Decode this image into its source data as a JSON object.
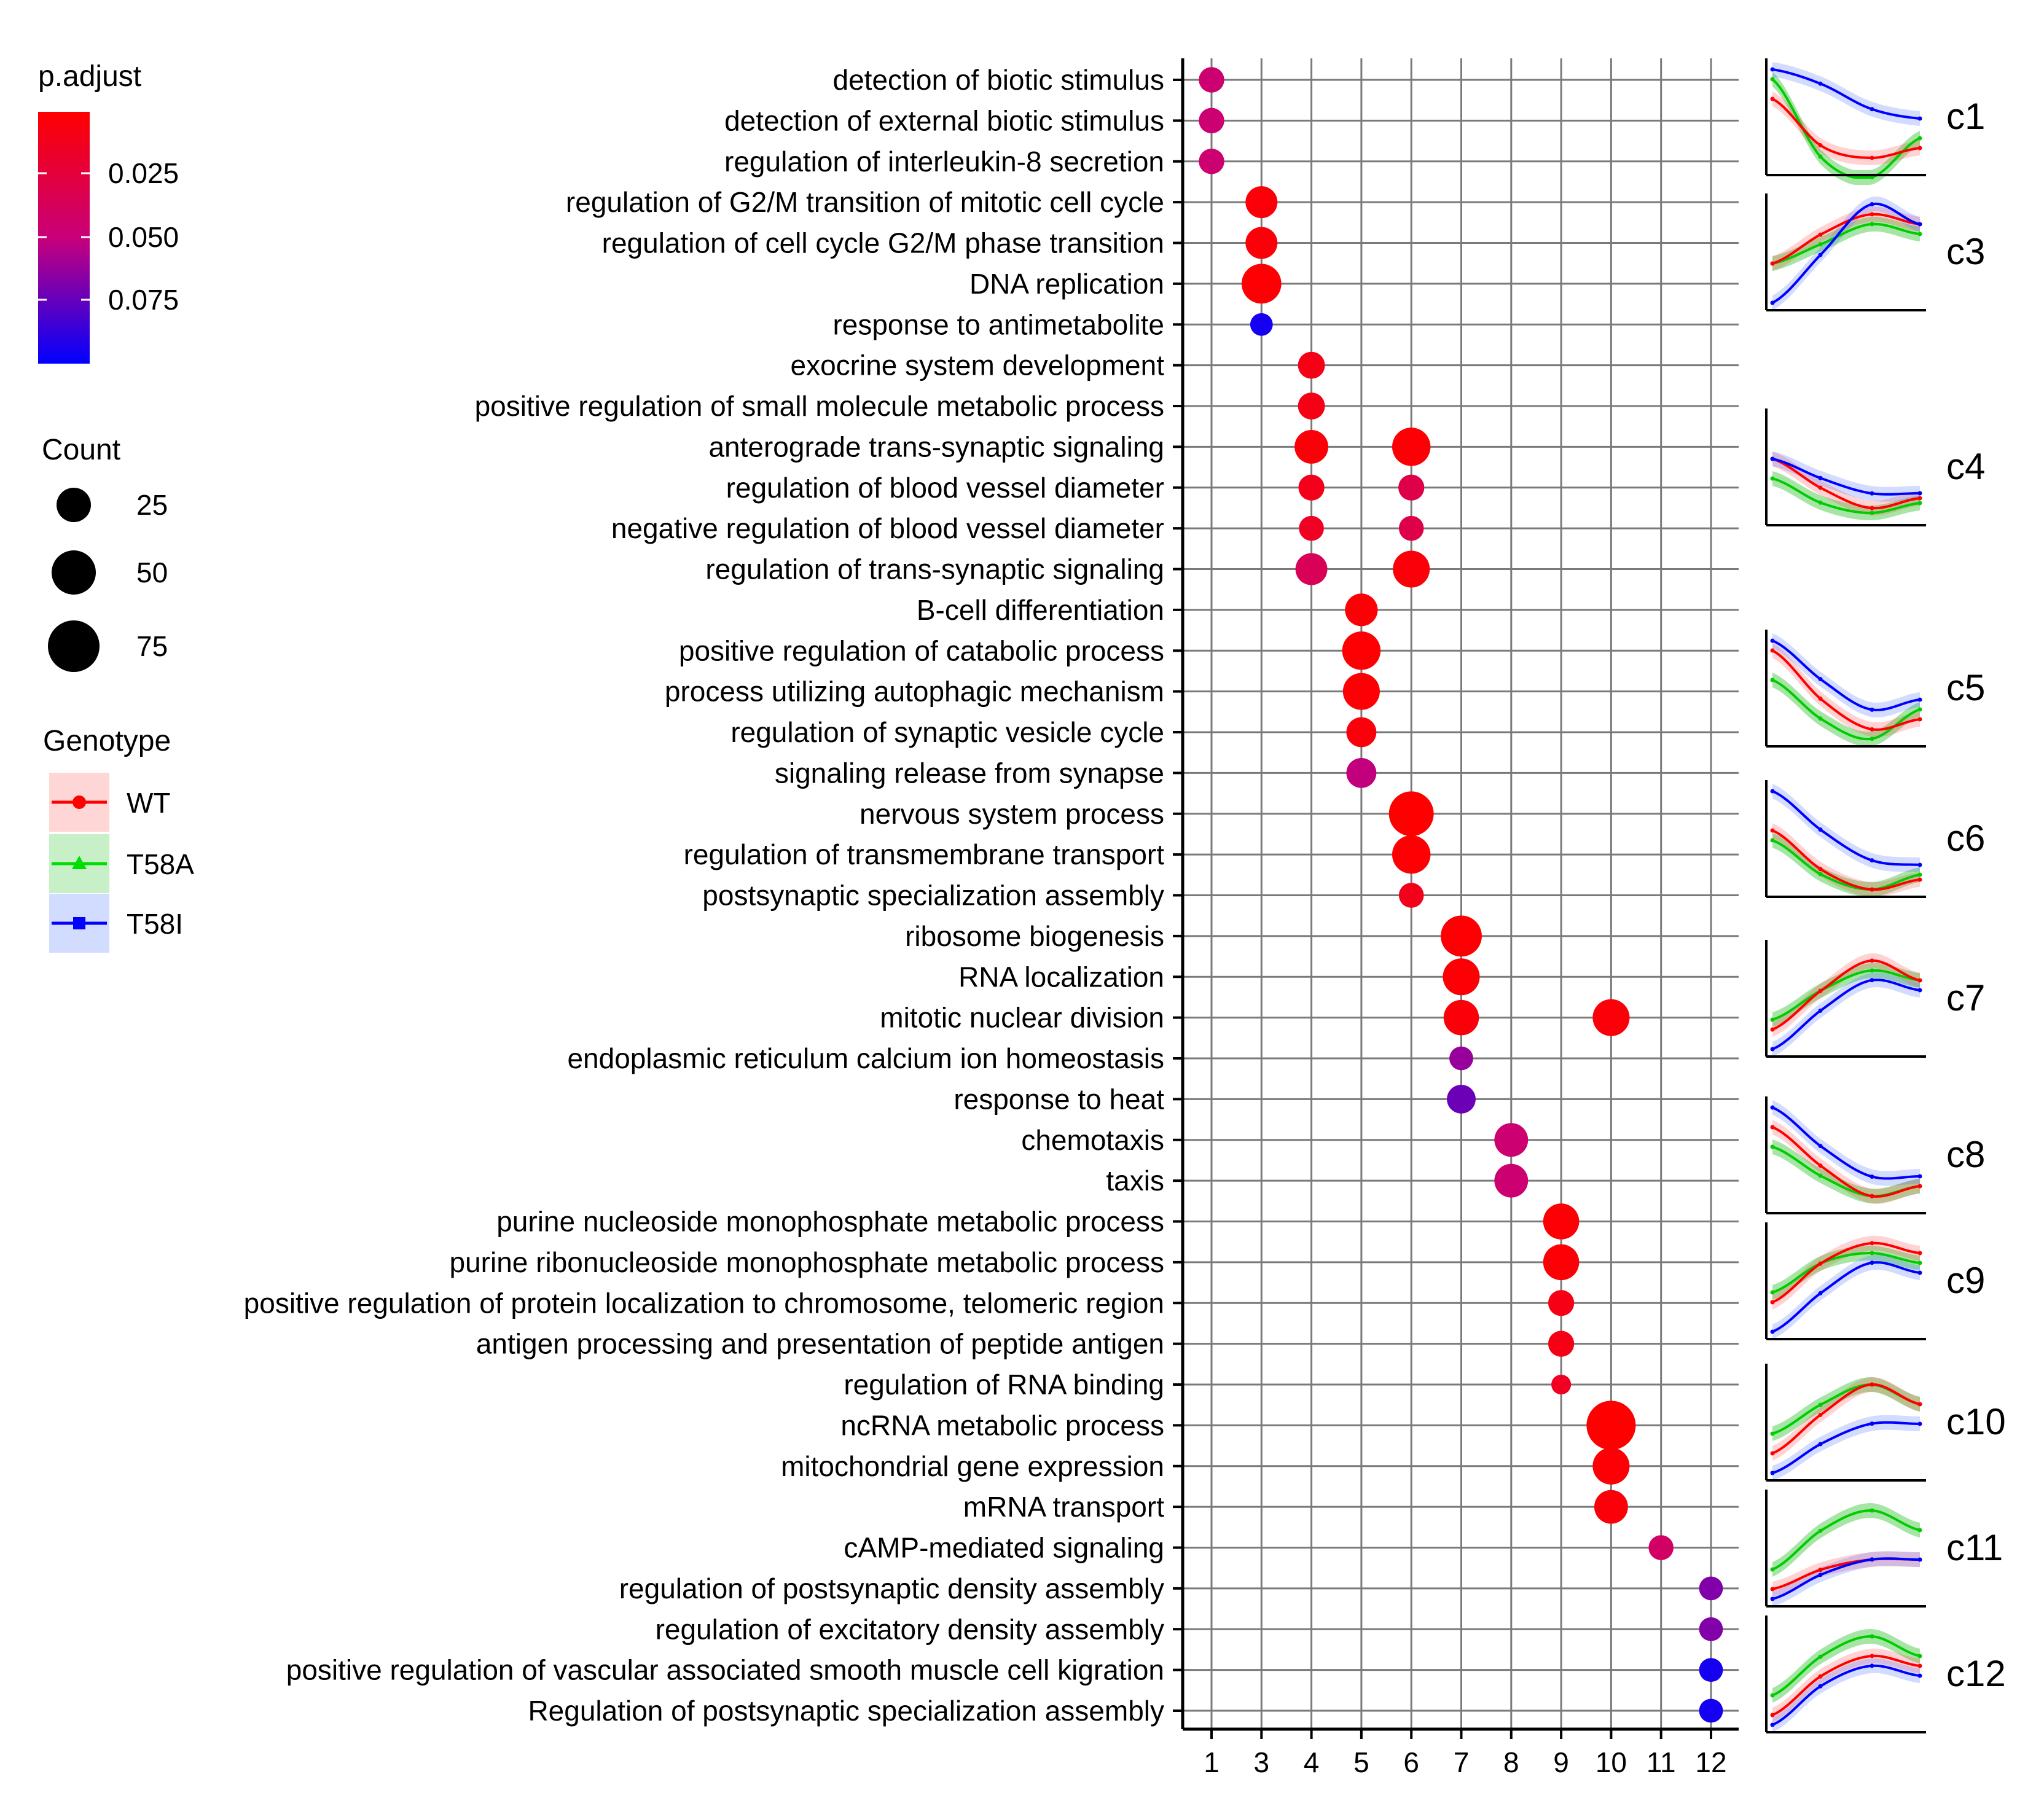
{
  "chart_data": {
    "type": "scatter",
    "title": "",
    "xlabel": "",
    "ylabel": "",
    "x_ticks": [
      "1",
      "3",
      "4",
      "5",
      "6",
      "7",
      "8",
      "9",
      "10",
      "11",
      "12"
    ],
    "terms": [
      "detection of biotic stimulus",
      "detection of external biotic stimulus",
      "regulation of interleukin-8 secretion",
      "regulation of G2/M transition of mitotic cell cycle",
      "regulation of cell cycle G2/M phase transition",
      "DNA replication",
      "response to antimetabolite",
      "exocrine system development",
      "positive regulation of small molecule metabolic process",
      "anterograde trans-synaptic signaling",
      "regulation of blood vessel diameter",
      "negative regulation of blood vessel diameter",
      "regulation of trans-synaptic signaling",
      "B-cell differentiation",
      "positive regulation of catabolic process",
      "process utilizing autophagic mechanism",
      "regulation of synaptic vesicle cycle",
      "signaling release from synapse",
      "nervous system process",
      "regulation of transmembrane transport",
      "postsynaptic specialization assembly",
      "ribosome biogenesis",
      "RNA localization",
      "mitotic nuclear division",
      "endoplasmic reticulum calcium ion homeostasis",
      "response to heat",
      "chemotaxis",
      "taxis",
      "purine nucleoside monophosphate metabolic process",
      "purine ribonucleoside monophosphate metabolic process",
      "positive regulation of protein localization to chromosome, telomeric region",
      "antigen processing and presentation of peptide antigen",
      "regulation of RNA binding",
      "ncRNA metabolic process",
      "mitochondrial gene expression",
      "mRNA transport",
      "cAMP-mediated signaling",
      "regulation of postsynaptic density assembly",
      "regulation of excitatory density assembly",
      "positive regulation of vascular associated smooth muscle cell kigration",
      "Regulation of postsynaptic specialization assembly"
    ],
    "points": [
      {
        "term": 0,
        "x": "1",
        "count": 15,
        "padj": 0.045
      },
      {
        "term": 1,
        "x": "1",
        "count": 15,
        "padj": 0.045
      },
      {
        "term": 2,
        "x": "1",
        "count": 15,
        "padj": 0.045
      },
      {
        "term": 3,
        "x": "3",
        "count": 30,
        "padj": 0.005
      },
      {
        "term": 4,
        "x": "3",
        "count": 30,
        "padj": 0.005
      },
      {
        "term": 5,
        "x": "3",
        "count": 55,
        "padj": 0.003
      },
      {
        "term": 6,
        "x": "3",
        "count": 10,
        "padj": 0.09
      },
      {
        "term": 7,
        "x": "4",
        "count": 18,
        "padj": 0.01
      },
      {
        "term": 8,
        "x": "4",
        "count": 18,
        "padj": 0.01
      },
      {
        "term": 9,
        "x": "4",
        "count": 35,
        "padj": 0.005
      },
      {
        "term": 9,
        "x": "6",
        "count": 50,
        "padj": 0.004
      },
      {
        "term": 10,
        "x": "4",
        "count": 16,
        "padj": 0.012
      },
      {
        "term": 10,
        "x": "6",
        "count": 16,
        "padj": 0.03
      },
      {
        "term": 11,
        "x": "4",
        "count": 14,
        "padj": 0.015
      },
      {
        "term": 11,
        "x": "6",
        "count": 14,
        "padj": 0.03
      },
      {
        "term": 12,
        "x": "4",
        "count": 30,
        "padj": 0.035
      },
      {
        "term": 12,
        "x": "6",
        "count": 45,
        "padj": 0.005
      },
      {
        "term": 13,
        "x": "5",
        "count": 32,
        "padj": 0.004
      },
      {
        "term": 14,
        "x": "5",
        "count": 50,
        "padj": 0.003
      },
      {
        "term": 15,
        "x": "5",
        "count": 45,
        "padj": 0.004
      },
      {
        "term": 16,
        "x": "5",
        "count": 25,
        "padj": 0.006
      },
      {
        "term": 17,
        "x": "5",
        "count": 25,
        "padj": 0.05
      },
      {
        "term": 18,
        "x": "6",
        "count": 75,
        "padj": 0.002
      },
      {
        "term": 19,
        "x": "6",
        "count": 50,
        "padj": 0.003
      },
      {
        "term": 20,
        "x": "6",
        "count": 14,
        "padj": 0.012
      },
      {
        "term": 21,
        "x": "7",
        "count": 60,
        "padj": 0.003
      },
      {
        "term": 22,
        "x": "7",
        "count": 45,
        "padj": 0.004
      },
      {
        "term": 23,
        "x": "7",
        "count": 40,
        "padj": 0.005
      },
      {
        "term": 23,
        "x": "10",
        "count": 45,
        "padj": 0.005
      },
      {
        "term": 24,
        "x": "7",
        "count": 12,
        "padj": 0.06
      },
      {
        "term": 25,
        "x": "7",
        "count": 22,
        "padj": 0.07
      },
      {
        "term": 26,
        "x": "8",
        "count": 35,
        "padj": 0.045
      },
      {
        "term": 27,
        "x": "8",
        "count": 35,
        "padj": 0.045
      },
      {
        "term": 28,
        "x": "9",
        "count": 42,
        "padj": 0.004
      },
      {
        "term": 29,
        "x": "9",
        "count": 42,
        "padj": 0.004
      },
      {
        "term": 30,
        "x": "9",
        "count": 16,
        "padj": 0.01
      },
      {
        "term": 31,
        "x": "9",
        "count": 16,
        "padj": 0.01
      },
      {
        "term": 32,
        "x": "9",
        "count": 6,
        "padj": 0.015
      },
      {
        "term": 33,
        "x": "10",
        "count": 95,
        "padj": 0.002
      },
      {
        "term": 34,
        "x": "10",
        "count": 45,
        "padj": 0.004
      },
      {
        "term": 35,
        "x": "10",
        "count": 35,
        "padj": 0.005
      },
      {
        "term": 36,
        "x": "11",
        "count": 14,
        "padj": 0.04
      },
      {
        "term": 37,
        "x": "12",
        "count": 12,
        "padj": 0.065
      },
      {
        "term": 38,
        "x": "12",
        "count": 12,
        "padj": 0.065
      },
      {
        "term": 39,
        "x": "12",
        "count": 12,
        "padj": 0.09
      },
      {
        "term": 40,
        "x": "12",
        "count": 12,
        "padj": 0.09
      }
    ],
    "color_legend": {
      "title": "p.adjust",
      "ticks": [
        "0.025",
        "0.050",
        "0.075"
      ],
      "low_color": "#ff0000",
      "high_color": "#0000ff"
    },
    "size_legend": {
      "title": "Count",
      "values": [
        "25",
        "50",
        "75"
      ]
    },
    "genotype_legend": {
      "title": "Genotype",
      "items": [
        {
          "label": "WT",
          "color": "#ff0000",
          "shape": "circle"
        },
        {
          "label": "T58A",
          "color": "#00dd00",
          "shape": "triangle"
        },
        {
          "label": "T58I",
          "color": "#0000ff",
          "shape": "square"
        }
      ]
    },
    "clusters": [
      {
        "label": "c1",
        "curves": {
          "WT": [
            0.7,
            0.22,
            0.1,
            0.2
          ],
          "T58A": [
            0.9,
            0.1,
            -0.1,
            0.3
          ],
          "T58I": [
            1.0,
            0.85,
            0.6,
            0.5
          ]
        }
      },
      {
        "label": "c3",
        "curves": {
          "WT": [
            0.4,
            0.7,
            0.9,
            0.8
          ],
          "T58A": [
            0.4,
            0.6,
            0.8,
            0.7
          ],
          "T58I": [
            0.0,
            0.5,
            1.0,
            0.8
          ]
        }
      },
      {
        "label": "c4",
        "curves": {
          "WT": [
            0.6,
            0.3,
            0.1,
            0.2
          ],
          "T58A": [
            0.4,
            0.15,
            0.05,
            0.15
          ],
          "T58I": [
            0.6,
            0.4,
            0.25,
            0.25
          ]
        }
      },
      {
        "label": "c5",
        "curves": {
          "WT": [
            0.9,
            0.4,
            0.1,
            0.2
          ],
          "T58A": [
            0.6,
            0.2,
            0.0,
            0.3
          ],
          "T58I": [
            1.0,
            0.6,
            0.3,
            0.4
          ]
        }
      },
      {
        "label": "c6",
        "curves": {
          "WT": [
            0.6,
            0.2,
            0.0,
            0.1
          ],
          "T58A": [
            0.5,
            0.15,
            0.0,
            0.15
          ],
          "T58I": [
            1.0,
            0.6,
            0.3,
            0.25
          ]
        }
      },
      {
        "label": "c7",
        "curves": {
          "WT": [
            0.2,
            0.6,
            0.9,
            0.7
          ],
          "T58A": [
            0.3,
            0.6,
            0.8,
            0.7
          ],
          "T58I": [
            0.0,
            0.4,
            0.7,
            0.6
          ]
        }
      },
      {
        "label": "c8",
        "curves": {
          "WT": [
            0.8,
            0.4,
            0.1,
            0.2
          ],
          "T58A": [
            0.6,
            0.3,
            0.1,
            0.2
          ],
          "T58I": [
            1.0,
            0.6,
            0.3,
            0.3
          ]
        }
      },
      {
        "label": "c9",
        "curves": {
          "WT": [
            0.3,
            0.7,
            0.9,
            0.8
          ],
          "T58A": [
            0.4,
            0.7,
            0.8,
            0.7
          ],
          "T58I": [
            0.0,
            0.4,
            0.7,
            0.6
          ]
        }
      },
      {
        "label": "c10",
        "curves": {
          "WT": [
            0.2,
            0.6,
            0.9,
            0.7
          ],
          "T58A": [
            0.4,
            0.7,
            0.9,
            0.7
          ],
          "T58I": [
            0.0,
            0.3,
            0.5,
            0.5
          ]
        }
      },
      {
        "label": "c11",
        "curves": {
          "WT": [
            0.1,
            0.3,
            0.4,
            0.4
          ],
          "T58A": [
            0.3,
            0.7,
            0.9,
            0.7
          ],
          "T58I": [
            0.0,
            0.25,
            0.4,
            0.4
          ]
        }
      },
      {
        "label": "c12",
        "curves": {
          "WT": [
            0.1,
            0.5,
            0.7,
            0.6
          ],
          "T58A": [
            0.3,
            0.7,
            0.9,
            0.7
          ],
          "T58I": [
            0.0,
            0.4,
            0.6,
            0.5
          ]
        }
      }
    ]
  }
}
